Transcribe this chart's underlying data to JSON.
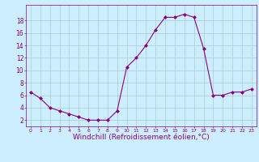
{
  "x": [
    0,
    1,
    2,
    3,
    4,
    5,
    6,
    7,
    8,
    9,
    10,
    11,
    12,
    13,
    14,
    15,
    16,
    17,
    18,
    19,
    20,
    21,
    22,
    23
  ],
  "y": [
    6.5,
    5.5,
    4.0,
    3.5,
    3.0,
    2.5,
    2.0,
    2.0,
    2.0,
    3.5,
    10.5,
    12.0,
    14.0,
    16.5,
    18.5,
    18.5,
    19.0,
    18.5,
    13.5,
    6.0,
    6.0,
    6.5,
    6.5,
    7.0
  ],
  "line_color": "#880088",
  "marker": "D",
  "markersize": 2,
  "bg_color": "#cceeff",
  "grid_color": "#aacccc",
  "xlabel": "Windchill (Refroidissement éolien,°C)",
  "xlabel_fontsize": 6.5,
  "ytick_labels": [
    "2",
    "4",
    "6",
    "8",
    "10",
    "12",
    "14",
    "16",
    "18"
  ],
  "yticks": [
    2,
    4,
    6,
    8,
    10,
    12,
    14,
    16,
    18
  ],
  "xticks": [
    0,
    1,
    2,
    3,
    4,
    5,
    6,
    7,
    8,
    9,
    10,
    11,
    12,
    13,
    14,
    15,
    16,
    17,
    18,
    19,
    20,
    21,
    22,
    23
  ],
  "ylim": [
    1.0,
    20.5
  ],
  "xlim": [
    -0.5,
    23.5
  ]
}
